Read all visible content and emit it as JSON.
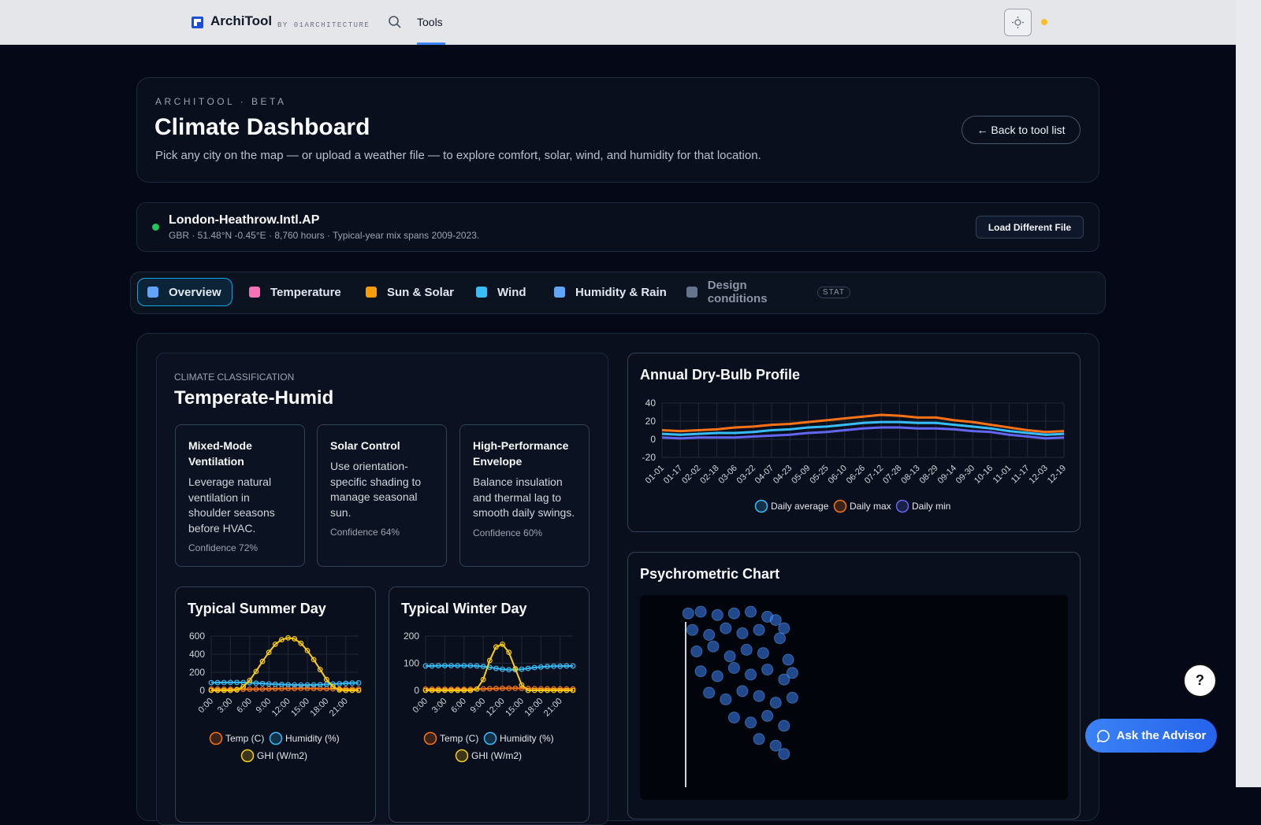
{
  "nav": {
    "brand": "ArchiTool",
    "byline": "BY 01ARCHITECTURE",
    "link": "Tools"
  },
  "header": {
    "eyebrow": "ARCHITOOL · BETA",
    "title": "Climate Dashboard",
    "subtitle": "Pick any city on the map — or upload a weather file — to explore comfort, solar, wind, and humidity for that location.",
    "back_button": "← Back to tool list"
  },
  "station": {
    "name": "London-Heathrow.Intl.AP",
    "meta": "GBR · 51.48°N -0.45°E · 8,760 hours · Typical-year mix spans 2009-2023.",
    "button": "Load Different File"
  },
  "tabs": [
    "Overview",
    "Temperature",
    "Sun & Solar",
    "Wind",
    "Humidity & Rain",
    "Design conditions"
  ],
  "active_tab": 0,
  "tab_badge": "STAT",
  "classification": {
    "label": "CLIMATE CLASSIFICATION",
    "value": "Temperate-Humid",
    "cards": [
      {
        "title": "Mixed-Mode Ventilation",
        "body": "Leverage natural ventilation in shoulder seasons before HVAC.",
        "confidence": "Confidence 72%"
      },
      {
        "title": "Solar Control",
        "body": "Use orientation-specific shading to manage seasonal sun.",
        "confidence": "Confidence 64%"
      },
      {
        "title": "High-Performance Envelope",
        "body": "Balance insulation and thermal lag to smooth daily swings.",
        "confidence": "Confidence 60%"
      }
    ]
  },
  "chart_data": [
    {
      "type": "line",
      "title": "Annual Dry-Bulb Profile",
      "categories": [
        "01-01",
        "01-17",
        "02-02",
        "02-18",
        "03-06",
        "03-22",
        "04-07",
        "04-23",
        "05-09",
        "05-25",
        "06-10",
        "06-26",
        "07-12",
        "07-28",
        "08-13",
        "08-29",
        "09-14",
        "09-30",
        "10-16",
        "11-01",
        "11-17",
        "12-03",
        "12-19"
      ],
      "series": [
        {
          "name": "Daily average",
          "color": "#38bdf8",
          "values": [
            6,
            5,
            6,
            7,
            7,
            8,
            10,
            11,
            13,
            14,
            16,
            18,
            19,
            19,
            18,
            18,
            16,
            14,
            12,
            9,
            7,
            5,
            6
          ]
        },
        {
          "name": "Daily max",
          "color": "#f97316",
          "values": [
            10,
            9,
            10,
            11,
            13,
            14,
            16,
            17,
            19,
            21,
            23,
            25,
            27,
            26,
            24,
            24,
            21,
            19,
            16,
            13,
            10,
            8,
            9
          ]
        },
        {
          "name": "Daily min",
          "color": "#6366f1",
          "values": [
            2,
            1,
            2,
            2,
            2,
            3,
            4,
            5,
            7,
            8,
            10,
            12,
            13,
            13,
            12,
            12,
            11,
            9,
            8,
            5,
            3,
            1,
            2
          ]
        }
      ],
      "ylim": [
        -20,
        40
      ],
      "yticks": [
        -20,
        0,
        20,
        40
      ],
      "grid": true,
      "markers": false
    },
    {
      "type": "line",
      "title": "Typical Summer Day",
      "categories": [
        "0:00",
        null,
        null,
        "3:00",
        null,
        null,
        "6:00",
        null,
        null,
        "9:00",
        null,
        null,
        "12:00",
        null,
        null,
        "15:00",
        null,
        null,
        "18:00",
        null,
        null,
        "21:00",
        null,
        null
      ],
      "series": [
        {
          "name": "Temp (C)",
          "color": "#f97316",
          "values": [
            14,
            13.5,
            13,
            12.5,
            12,
            12.5,
            13,
            14,
            15.5,
            17,
            18.5,
            19.5,
            20.5,
            21,
            21.5,
            21.5,
            21,
            20,
            19,
            18,
            17,
            16,
            15,
            14.5
          ]
        },
        {
          "name": "Humidity (%)",
          "color": "#38bdf8",
          "values": [
            85,
            86,
            87,
            88,
            88,
            87,
            84,
            80,
            76,
            72,
            68,
            65,
            63,
            61,
            60,
            60,
            61,
            63,
            66,
            70,
            74,
            78,
            81,
            83
          ]
        },
        {
          "name": "GHI (W/m2)",
          "color": "#facc15",
          "values": [
            0,
            0,
            0,
            0,
            5,
            40,
            110,
            210,
            320,
            420,
            510,
            560,
            580,
            570,
            520,
            440,
            340,
            230,
            120,
            40,
            5,
            0,
            0,
            0
          ]
        }
      ],
      "ylim": [
        0,
        600
      ],
      "yticks": [
        0,
        200,
        400,
        600
      ],
      "grid": true,
      "markers": true
    },
    {
      "type": "line",
      "title": "Typical Winter Day",
      "categories": [
        "0:00",
        null,
        null,
        "3:00",
        null,
        null,
        "6:00",
        null,
        null,
        "9:00",
        null,
        null,
        "12:00",
        null,
        null,
        "15:00",
        null,
        null,
        "18:00",
        null,
        null,
        "21:00",
        null,
        null
      ],
      "series": [
        {
          "name": "Temp (C)",
          "color": "#f97316",
          "values": [
            5,
            4.8,
            4.6,
            4.5,
            4.4,
            4.3,
            4.3,
            4.4,
            4.8,
            5.5,
            6.3,
            7,
            7.5,
            7.8,
            7.8,
            7.5,
            7,
            6.6,
            6.2,
            6,
            5.8,
            5.6,
            5.4,
            5.2
          ]
        },
        {
          "name": "Humidity (%)",
          "color": "#38bdf8",
          "values": [
            90,
            90,
            91,
            91,
            91,
            91,
            91,
            91,
            90,
            88,
            85,
            81,
            78,
            76,
            76,
            78,
            81,
            84,
            86,
            88,
            89,
            89,
            90,
            90
          ]
        },
        {
          "name": "GHI (W/m2)",
          "color": "#facc15",
          "values": [
            0,
            0,
            0,
            0,
            0,
            0,
            0,
            0,
            5,
            40,
            110,
            160,
            170,
            140,
            80,
            20,
            0,
            0,
            0,
            0,
            0,
            0,
            0,
            0
          ]
        }
      ],
      "ylim": [
        0,
        200
      ],
      "yticks": [
        0,
        100,
        200
      ],
      "grid": true,
      "markers": true
    },
    {
      "type": "scatter",
      "title": "Psychrometric Chart",
      "color": "#3b82f6",
      "x": [
        -5.5,
        -4,
        -2,
        0,
        2,
        4,
        5,
        -5,
        -3,
        -1,
        1,
        3,
        5.5,
        6,
        -4.5,
        -2.5,
        -0.5,
        1.5,
        3.5,
        6.5,
        -4,
        -2,
        0,
        2,
        4,
        6,
        7,
        -3,
        -1,
        1,
        3,
        5,
        7,
        0,
        2,
        4,
        6,
        3,
        5,
        6
      ],
      "y": [
        9.8,
        9.9,
        9.7,
        9.8,
        9.9,
        9.6,
        9.4,
        8.8,
        8.5,
        8.9,
        8.6,
        8.8,
        8.3,
        8.9,
        7.5,
        7.8,
        7.2,
        7.6,
        7.4,
        7.0,
        6.3,
        6.0,
        6.5,
        6.1,
        6.4,
        5.8,
        6.2,
        5.0,
        4.6,
        5.1,
        4.8,
        4.4,
        4.7,
        3.5,
        3.2,
        3.6,
        3.0,
        2.2,
        1.8,
        1.3
      ],
      "xlim": [
        -6,
        40
      ],
      "ylim": [
        0,
        10
      ]
    }
  ],
  "floating": {
    "advisor": "Ask the Advisor",
    "help": "?"
  }
}
